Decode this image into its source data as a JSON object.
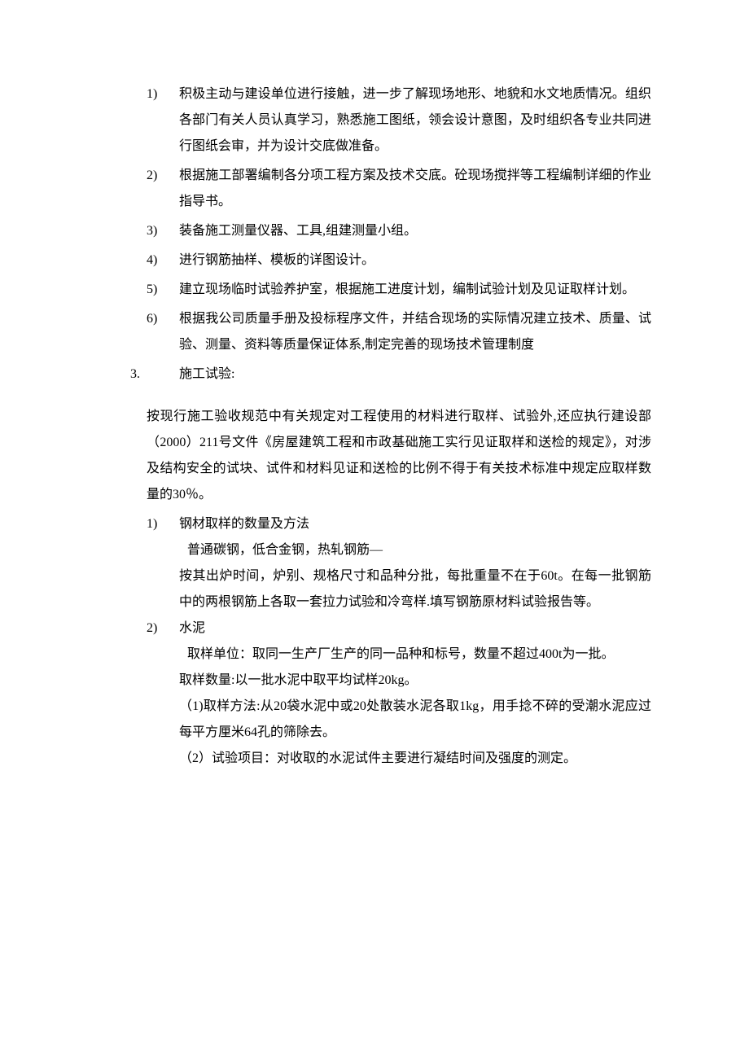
{
  "items": {
    "i1": {
      "num": "1)",
      "text": "积极主动与建设单位进行接触，进一步了解现场地形、地貌和水文地质情况。组织各部门有关人员认真学习，熟悉施工图纸，领会设计意图，及时组织各专业共同进行图纸会审，并为设计交底做准备。"
    },
    "i2": {
      "num": "2)",
      "text": "根据施工部署编制各分项工程方案及技术交底。砼现场搅拌等工程编制详细的作业指导书。"
    },
    "i3": {
      "num": "3)",
      "text": "装备施工测量仪器、工具,组建测量小组。"
    },
    "i4": {
      "num": "4)",
      "text": "进行钢筋抽样、模板的详图设计。"
    },
    "i5": {
      "num": "5)",
      "text": "建立现场临时试验养护室，根据施工进度计划，编制试验计划及见证取样计划。"
    },
    "i6": {
      "num": "6)",
      "text": "根据我公司质量手册及投标程序文件，并结合现场的实际情况建立技术、质量、试验、测量、资料等质量保证体系,制定完善的现场技术管理制度"
    }
  },
  "section3": {
    "num": "3.",
    "title": "施工试验:",
    "para": "按现行施工验收规范中有关规定对工程使用的材料进行取样、试验外,还应执行建设部（2000）211号文件《房屋建筑工程和市政基础施工实行见证取样和送检的规定》，对涉及结构安全的试块、试件和材料见证和送检的比例不得于有关技术标准中规定应取样数量的30％。"
  },
  "sub1": {
    "num": "1)",
    "title": "钢材取样的数量及方法",
    "line1": "普通碳钢，低合金钢，热轧钢筋—",
    "line2": "按其出炉时间，炉别、规格尺寸和品种分批，每批重量不在于60t。在每一批钢筋中的两根钢筋上各取一套拉力试验和冷弯样.填写钢筋原材料试验报告等。"
  },
  "sub2": {
    "num": "2)",
    "title": "水泥",
    "line1": "取样单位：取同一生产厂生产的同一品种和标号，数量不超过400t为一批。",
    "line2": "取样数量:以一批水泥中取平均试样20kg。",
    "line3": "（1)取样方法:从20袋水泥中或20处散装水泥各取1kg，用手捻不碎的受潮水泥应过每平方厘米64孔的筛除去。",
    "line4": "（2）试验项目：对收取的水泥试件主要进行凝结时间及强度的测定。"
  }
}
